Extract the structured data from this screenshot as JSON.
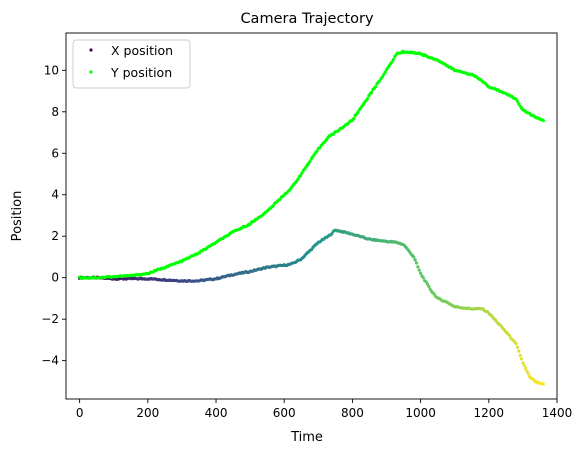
{
  "chart_data": {
    "type": "scatter",
    "title": "Camera Trajectory",
    "xlabel": "Time",
    "ylabel": "Position",
    "xlim": [
      -40,
      1400
    ],
    "ylim": [
      -5.85,
      11.8
    ],
    "xticks": [
      0,
      200,
      400,
      600,
      800,
      1000,
      1200,
      1400
    ],
    "yticks": [
      -4,
      -2,
      0,
      2,
      4,
      6,
      8,
      10
    ],
    "xtick_labels": [
      "0",
      "200",
      "400",
      "600",
      "800",
      "1000",
      "1200",
      "1400"
    ],
    "ytick_labels": [
      "−4",
      "−2",
      "0",
      "2",
      "4",
      "6",
      "8",
      "10"
    ],
    "grid": false,
    "legend_position": "top-left",
    "series": [
      {
        "name": "X position",
        "legend_label": "X position",
        "color_map": "viridis",
        "legend_color": "#440154",
        "x": [
          0,
          50,
          100,
          150,
          200,
          250,
          300,
          350,
          400,
          450,
          500,
          550,
          600,
          620,
          650,
          700,
          730,
          750,
          800,
          850,
          900,
          930,
          950,
          980,
          1000,
          1030,
          1050,
          1080,
          1100,
          1150,
          1180,
          1200,
          1250,
          1280,
          1300,
          1320,
          1340,
          1360
        ],
        "values": [
          0.0,
          0.0,
          -0.05,
          -0.05,
          -0.05,
          -0.1,
          -0.15,
          -0.15,
          -0.05,
          0.15,
          0.3,
          0.5,
          0.6,
          0.65,
          0.9,
          1.7,
          2.0,
          2.3,
          2.1,
          1.85,
          1.75,
          1.7,
          1.6,
          1.0,
          0.2,
          -0.6,
          -1.0,
          -1.2,
          -1.4,
          -1.5,
          -1.5,
          -1.7,
          -2.6,
          -3.2,
          -4.1,
          -4.8,
          -5.05,
          -5.15
        ]
      },
      {
        "name": "Y position",
        "legend_label": "Y position",
        "color": "#00ff00",
        "x": [
          0,
          50,
          100,
          150,
          200,
          250,
          300,
          350,
          400,
          450,
          500,
          550,
          600,
          620,
          650,
          700,
          730,
          750,
          800,
          850,
          900,
          930,
          950,
          980,
          1000,
          1030,
          1050,
          1080,
          1100,
          1150,
          1180,
          1200,
          1250,
          1280,
          1300,
          1320,
          1340,
          1360
        ],
        "values": [
          0.0,
          0.0,
          0.05,
          0.1,
          0.2,
          0.5,
          0.8,
          1.2,
          1.7,
          2.2,
          2.6,
          3.2,
          4.0,
          4.3,
          5.0,
          6.2,
          6.8,
          7.0,
          7.6,
          8.8,
          10.0,
          10.8,
          10.9,
          10.85,
          10.8,
          10.6,
          10.5,
          10.2,
          10.0,
          9.8,
          9.5,
          9.2,
          8.9,
          8.6,
          8.1,
          7.9,
          7.7,
          7.6
        ]
      }
    ]
  }
}
